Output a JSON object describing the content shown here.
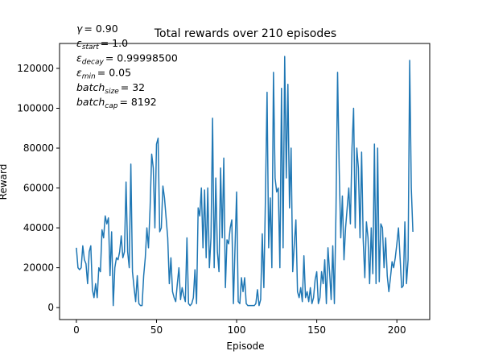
{
  "chart_data": {
    "type": "line",
    "title": "Total rewards over 210 episodes",
    "xlabel": "Episode",
    "ylabel": "Reward",
    "annotations": [
      {
        "symbol": "γ",
        "value": "= 0.90"
      },
      {
        "symbol": "ε",
        "sub": "start",
        "value": "= 1.0"
      },
      {
        "symbol": "ε",
        "sub": "decay",
        "value": "= 0.99998500"
      },
      {
        "symbol": "ε",
        "sub": "min",
        "value": "= 0.05"
      },
      {
        "symbol": "batch",
        "sub": "size",
        "value": "= 32"
      },
      {
        "symbol": "batch",
        "sub": "cap",
        "value": "= 8192"
      }
    ],
    "x_start": 0,
    "series": [
      {
        "color": "#1f77b4",
        "values": [
          30000,
          20000,
          19000,
          20000,
          31000,
          24000,
          22000,
          12000,
          28000,
          31000,
          9000,
          5000,
          12000,
          5000,
          20000,
          18000,
          39000,
          35000,
          46000,
          42000,
          45000,
          16000,
          38000,
          1000,
          20000,
          25000,
          24000,
          28000,
          36000,
          25000,
          28000,
          63000,
          28000,
          20000,
          72000,
          18000,
          10000,
          3000,
          16000,
          2000,
          1000,
          1000,
          16000,
          25000,
          40000,
          30000,
          50000,
          77000,
          70000,
          40000,
          82000,
          85000,
          38000,
          40000,
          61000,
          55000,
          45000,
          35000,
          12000,
          25000,
          8000,
          5000,
          3000,
          12000,
          20000,
          4000,
          10000,
          6000,
          3000,
          35000,
          2000,
          1000,
          2000,
          5000,
          19000,
          2000,
          50000,
          46000,
          60000,
          30000,
          59000,
          25000,
          60000,
          20000,
          35000,
          95000,
          20000,
          65000,
          28000,
          18000,
          70000,
          35000,
          75000,
          10000,
          34000,
          32000,
          40000,
          44000,
          2000,
          30000,
          58000,
          3000,
          2000,
          15000,
          8000,
          15000,
          2000,
          1000,
          1000,
          1000,
          1000,
          1000,
          2000,
          9000,
          1000,
          4000,
          37000,
          10000,
          56000,
          108000,
          30000,
          55000,
          20000,
          118000,
          65000,
          58000,
          60000,
          20000,
          110000,
          30000,
          126000,
          65000,
          112000,
          50000,
          80000,
          18000,
          32000,
          44000,
          8000,
          5000,
          10000,
          3000,
          26000,
          5000,
          8000,
          3000,
          10000,
          2000,
          5000,
          14000,
          18000,
          2000,
          5000,
          18000,
          12000,
          24000,
          2000,
          30000,
          18000,
          4000,
          31000,
          2000,
          48000,
          118000,
          70000,
          35000,
          56000,
          24000,
          40000,
          50000,
          60000,
          42000,
          80000,
          100000,
          40000,
          80000,
          70000,
          35000,
          78000,
          34000,
          15000,
          43000,
          35000,
          12000,
          40000,
          17000,
          82000,
          12000,
          80000,
          13000,
          42000,
          40000,
          20000,
          35000,
          16000,
          8000,
          15000,
          23000,
          20000,
          25000,
          32000,
          40000,
          25000,
          10000,
          11000,
          43000,
          12000,
          24000,
          124000,
          60000,
          38000
        ]
      }
    ],
    "xlim": [
      -10.5,
      220.5
    ],
    "xticks": [
      0,
      50,
      100,
      150,
      200
    ],
    "ylim": [
      -6000,
      132500
    ],
    "yticks": [
      0,
      20000,
      40000,
      60000,
      80000,
      100000,
      120000
    ],
    "grid": false
  }
}
